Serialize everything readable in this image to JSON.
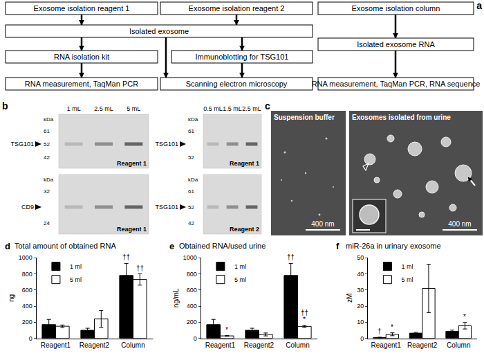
{
  "panel_labels": [
    "a",
    "b",
    "c",
    "d",
    "e",
    "f"
  ],
  "flowchart": {
    "boxes": [
      "Exosome isolation reagent 1",
      "Exosome isolation reagent 2",
      "Exosome isolation column",
      "Isolated exosome",
      "Isolated exosome RNA",
      "RNA isolation kit",
      "Immunoblotting for TSG101",
      "RNA measurement, TaqMan PCR",
      "Scanning electron microscopy",
      "RNA measurement, TaqMan PCR, RNA sequence"
    ]
  },
  "blots": {
    "marker_unit": "kDa",
    "columns": [
      {
        "lanes": [
          "1 mL",
          "2.5 mL",
          "5 mL"
        ],
        "blots": [
          {
            "target": "TSG101",
            "markers": [
              61,
              52,
              42
            ],
            "reagent": "Reagent 1"
          },
          {
            "target": "CD9",
            "markers": [
              32,
              24
            ],
            "reagent": "Reagent 1"
          }
        ]
      },
      {
        "lanes": [
          "0.5 mL",
          "1.5 mL",
          "2.5 mL"
        ],
        "blots": [
          {
            "target": "TSG101",
            "markers": [
              61,
              52
            ],
            "reagent": "Reagent 1"
          },
          {
            "target": "TSG101",
            "markers": [
              61,
              52,
              42
            ],
            "reagent": "Reagent 2"
          }
        ]
      }
    ]
  },
  "micrographs": [
    {
      "label": "Suspension buffer",
      "scale_bar": "400 nm"
    },
    {
      "label": "Exosomes isolated from urine",
      "scale_bar": "400 nm"
    }
  ],
  "chart_data": [
    {
      "type": "bar",
      "title": "Total amount of obtained RNA",
      "y_label": "ng",
      "categories": [
        "Reagent1",
        "Reagent2",
        "Column"
      ],
      "series": [
        {
          "name": "1 ml",
          "color": "#000000",
          "values": [
            170,
            100,
            780
          ],
          "errors": [
            65,
            25,
            150
          ]
        },
        {
          "name": "5 ml",
          "color": "#ffffff",
          "values": [
            150,
            240,
            730
          ],
          "errors": [
            15,
            105,
            70
          ]
        }
      ],
      "ylim": [
        0,
        1000
      ],
      "yticks": [
        0,
        200,
        400,
        600,
        800,
        1000
      ],
      "grid": false,
      "legend": "upper left",
      "annotations": [
        {
          "text": "††",
          "category": "Column",
          "series": "1 ml"
        },
        {
          "text": "††",
          "category": "Column",
          "series": "5 ml"
        }
      ]
    },
    {
      "type": "bar",
      "title": "Obtained RNA/used urine",
      "y_label": "ng/mL",
      "categories": [
        "Reagent1",
        "Reagent2",
        "Column"
      ],
      "series": [
        {
          "name": "1 ml",
          "color": "#000000",
          "values": [
            170,
            100,
            780
          ],
          "errors": [
            65,
            25,
            150
          ]
        },
        {
          "name": "5 ml",
          "color": "#ffffff",
          "values": [
            30,
            48,
            148
          ],
          "errors": [
            4,
            18,
            12
          ]
        }
      ],
      "ylim": [
        0,
        1000
      ],
      "yticks": [
        0,
        200,
        400,
        600,
        800,
        1000
      ],
      "grid": false,
      "legend": "upper left",
      "annotations": [
        {
          "text": "*",
          "category": "Reagent1",
          "series": "5 ml"
        },
        {
          "text": "††",
          "category": "Column",
          "series": "1 ml"
        },
        {
          "text": "*",
          "category": "Column",
          "series": "5 ml"
        },
        {
          "text": "††",
          "category": "Column",
          "series": "5 ml"
        }
      ]
    },
    {
      "type": "bar",
      "title": "miR-26a in urinary exosome",
      "y_label": "zM",
      "categories": [
        "Reagent1",
        "Reagent2",
        "Column"
      ],
      "series": [
        {
          "name": "1 ml",
          "color": "#000000",
          "values": [
            0.5,
            3.2,
            4.3
          ],
          "errors": [
            0.2,
            0.5,
            0.8
          ]
        },
        {
          "name": "5 ml",
          "color": "#ffffff",
          "values": [
            2.5,
            31,
            7.8
          ],
          "errors": [
            0.9,
            15,
            2
          ]
        }
      ],
      "ylim": [
        0,
        50
      ],
      "yticks": [
        0,
        10,
        20,
        30,
        40,
        50
      ],
      "grid": false,
      "legend": "upper left",
      "annotations": [
        {
          "text": "†",
          "category": "Reagent1",
          "series": "1 ml"
        },
        {
          "text": "*",
          "category": "Reagent1",
          "series": "5 ml"
        },
        {
          "text": "*",
          "category": "Column",
          "series": "5 ml"
        }
      ]
    }
  ]
}
